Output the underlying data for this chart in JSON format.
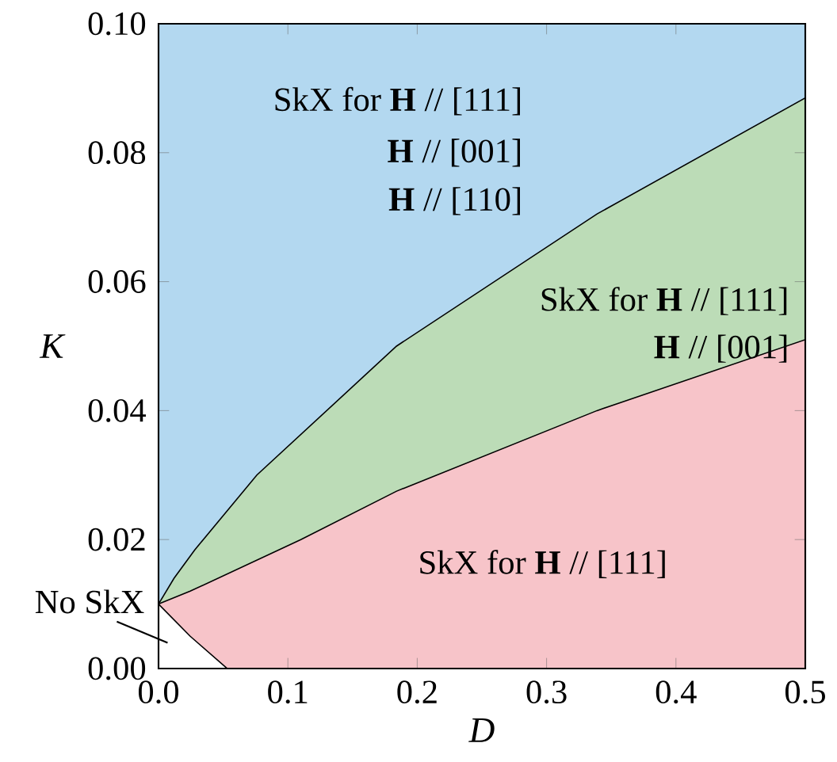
{
  "chart_data": {
    "type": "area",
    "xlabel": "D",
    "ylabel": "K",
    "xlim": [
      0,
      0.5
    ],
    "ylim": [
      0,
      0.1
    ],
    "xticks": [
      {
        "value": 0,
        "label": "0.0"
      },
      {
        "value": 0.1,
        "label": "0.1"
      },
      {
        "value": 0.2,
        "label": "0.2"
      },
      {
        "value": 0.3,
        "label": "0.3"
      },
      {
        "value": 0.4,
        "label": "0.4"
      },
      {
        "value": 0.5,
        "label": "0.5"
      }
    ],
    "yticks": [
      {
        "value": 0,
        "label": "0.00"
      },
      {
        "value": 0.02,
        "label": "0.02"
      },
      {
        "value": 0.04,
        "label": "0.04"
      },
      {
        "value": 0.06,
        "label": "0.06"
      },
      {
        "value": 0.08,
        "label": "0.08"
      },
      {
        "value": 0.1,
        "label": "0.10"
      }
    ],
    "bands": [
      {
        "axis": "y",
        "from": 0,
        "to": 0.1,
        "color": "#b3d8f0"
      }
    ],
    "series": [
      {
        "color": "#bcdcb7",
        "x": [
          0,
          0.012,
          0.028,
          0.076,
          0.184,
          0.339,
          0.5
        ],
        "values": [
          0.01,
          0.014,
          0.0184,
          0.03,
          0.05,
          0.0705,
          0.0885
        ]
      },
      {
        "color": "#f7c4c9",
        "x": [
          0,
          0.0245,
          0.11,
          0.184,
          0.339,
          0.5
        ],
        "values": [
          0.01,
          0.012,
          0.02,
          0.0275,
          0.04,
          0.051
        ]
      },
      {
        "type": "line",
        "color": "#000000",
        "x": [
          0,
          0.0245,
          0.053
        ],
        "values": [
          0.01,
          0.005,
          0
        ]
      }
    ],
    "annotations": [
      "SkX for **H** // [111]",
      "**H** // [001]",
      "**H** // [110]",
      "SkX for **H** // [111]",
      "**H** // [001]",
      "SkX for **H** // [111]",
      "No SkX"
    ]
  }
}
